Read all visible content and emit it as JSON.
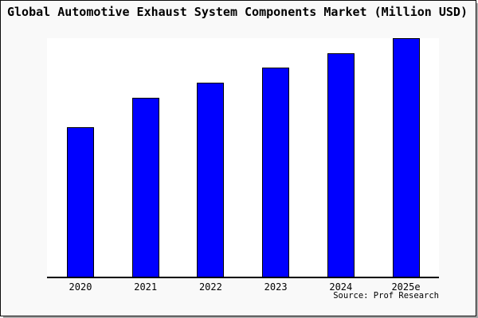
{
  "title": "Global Automotive Exhaust System Components Market (Million USD)",
  "source": "Source: Prof Research",
  "colors": {
    "canvas_background": "#f9f9f9",
    "plot_background": "#ffffff",
    "bar_fill": "#0000ff",
    "bar_border": "#000000",
    "axis": "#000000",
    "frame_border": "#0d0d0d",
    "frame_shadow": "#a8a8a8",
    "text": "#000000"
  },
  "chart_data": {
    "type": "bar",
    "title": "Global Automotive Exhaust System Components Market (Million USD)",
    "categories": [
      "2020",
      "2021",
      "2022",
      "2023",
      "2024",
      "2025e"
    ],
    "values": [
      188,
      225,
      244,
      263,
      281,
      300
    ],
    "values_unit": "relative height (y-axis unlabeled in source image)",
    "xlabel": "",
    "ylabel": "",
    "ylim": [
      0,
      300
    ],
    "grid": false,
    "legend": false,
    "y_axis_ticks_shown": false,
    "bar_color": "#0000ff"
  }
}
